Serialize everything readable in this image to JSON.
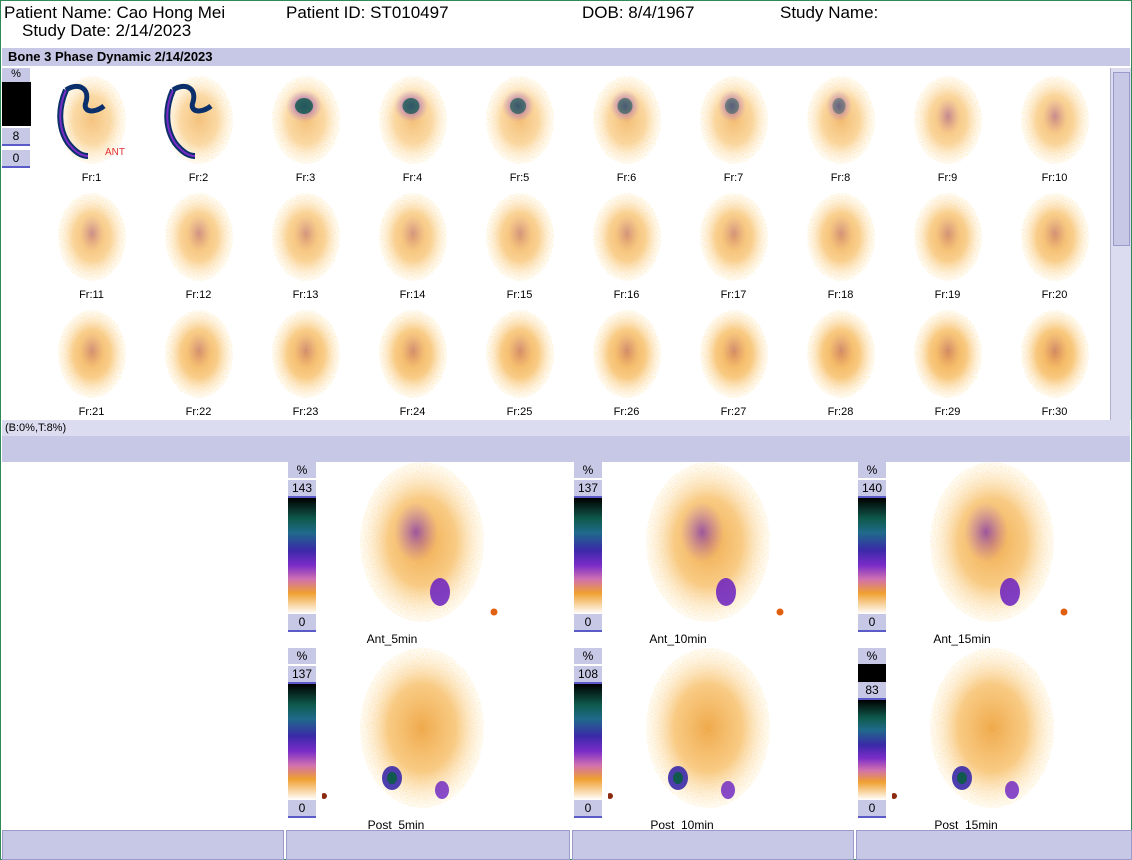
{
  "header": {
    "patient_name": "Patient Name: Cao Hong Mei",
    "study_date": "Study Date: 2/14/2023",
    "patient_id": "Patient ID: ST010497",
    "dob": "DOB: 8/4/1967",
    "study_name": "Study Name:"
  },
  "dynamic": {
    "title": "Bone 3 Phase Dynamic 2/14/2023",
    "scale": {
      "percent": "%",
      "max": "8",
      "min": "0"
    },
    "orientation_marker": "ANT",
    "range_text": "(B:0%,T:8%)",
    "frames": [
      "Fr:1",
      "Fr:2",
      "Fr:3",
      "Fr:4",
      "Fr:5",
      "Fr:6",
      "Fr:7",
      "Fr:8",
      "Fr:9",
      "Fr:10",
      "Fr:11",
      "Fr:12",
      "Fr:13",
      "Fr:14",
      "Fr:15",
      "Fr:16",
      "Fr:17",
      "Fr:18",
      "Fr:19",
      "Fr:20",
      "Fr:21",
      "Fr:22",
      "Fr:23",
      "Fr:24",
      "Fr:25",
      "Fr:26",
      "Fr:27",
      "Fr:28",
      "Fr:29",
      "Fr:30"
    ]
  },
  "static_views": [
    {
      "name": "Ant_5min",
      "percent": "%",
      "max": "143",
      "min": "0"
    },
    {
      "name": "Ant_10min",
      "percent": "%",
      "max": "137",
      "min": "0"
    },
    {
      "name": "Ant_15min",
      "percent": "%",
      "max": "140",
      "min": "0"
    },
    {
      "name": "Post_5min",
      "percent": "%",
      "max": "137",
      "min": "0"
    },
    {
      "name": "Post_10min",
      "percent": "%",
      "max": "108",
      "min": "0"
    },
    {
      "name": "Post_15min",
      "percent": "%",
      "max": "83",
      "min": "0"
    }
  ],
  "colors": {
    "panel": "#c7c7e6",
    "orange": "#f5a623",
    "purple": "#7a2cc8",
    "teal": "#0d7a6a",
    "annotation": "#e03030"
  }
}
